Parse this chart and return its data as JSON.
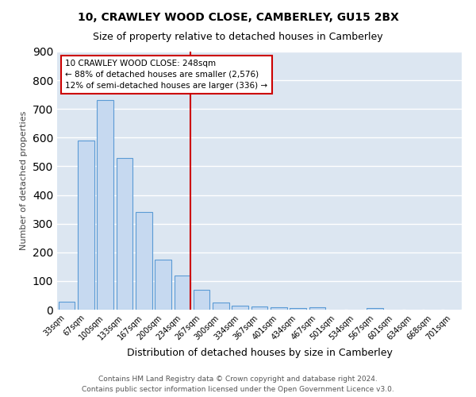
{
  "title": "10, CRAWLEY WOOD CLOSE, CAMBERLEY, GU15 2BX",
  "subtitle": "Size of property relative to detached houses in Camberley",
  "xlabel": "Distribution of detached houses by size in Camberley",
  "ylabel": "Number of detached properties",
  "footer1": "Contains HM Land Registry data © Crown copyright and database right 2024.",
  "footer2": "Contains public sector information licensed under the Open Government Licence v3.0.",
  "bar_labels": [
    "33sqm",
    "67sqm",
    "100sqm",
    "133sqm",
    "167sqm",
    "200sqm",
    "234sqm",
    "267sqm",
    "300sqm",
    "334sqm",
    "367sqm",
    "401sqm",
    "434sqm",
    "467sqm",
    "501sqm",
    "534sqm",
    "567sqm",
    "601sqm",
    "634sqm",
    "668sqm",
    "701sqm"
  ],
  "bar_values": [
    27,
    590,
    730,
    530,
    340,
    175,
    120,
    68,
    25,
    14,
    10,
    8,
    5,
    8,
    0,
    0,
    5,
    0,
    0,
    0,
    0
  ],
  "bar_color": "#c6d9f0",
  "bar_edge_color": "#5b9bd5",
  "fig_bg_color": "#ffffff",
  "ax_bg_color": "#dce6f1",
  "ylim": [
    0,
    900
  ],
  "annotation_box_text": [
    "10 CRAWLEY WOOD CLOSE: 248sqm",
    "← 88% of detached houses are smaller (2,576)",
    "12% of semi-detached houses are larger (336) →"
  ],
  "annotation_box_color": "#cc0000",
  "vline_color": "#cc0000",
  "grid_color": "#ffffff",
  "yticks": [
    0,
    100,
    200,
    300,
    400,
    500,
    600,
    700,
    800,
    900
  ],
  "vline_bar_index": 6,
  "title_fontsize": 10,
  "subtitle_fontsize": 9,
  "ylabel_fontsize": 8,
  "xlabel_fontsize": 9,
  "tick_fontsize": 7,
  "footer_fontsize": 6.5,
  "ann_fontsize": 7.5
}
